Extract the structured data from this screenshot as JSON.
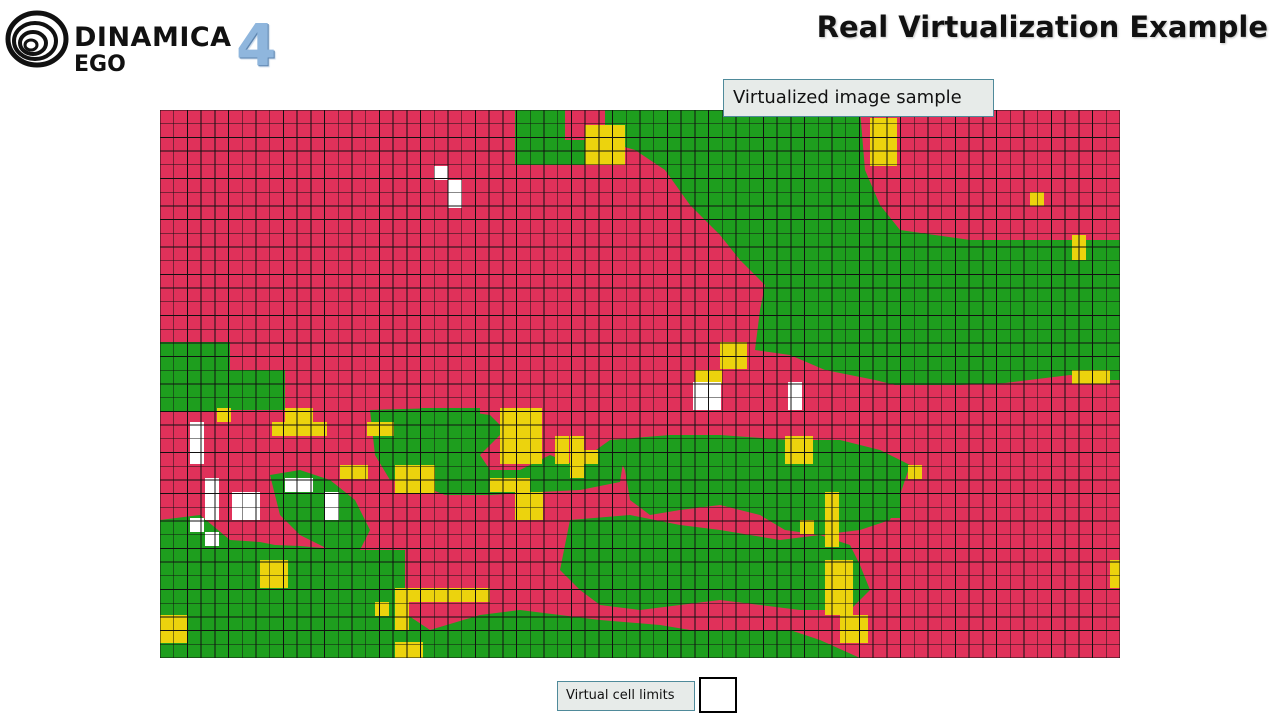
{
  "header": {
    "logo": {
      "name": "DINAMICA",
      "sub": "EGO",
      "version": "4"
    },
    "title": "Real Virtualization Example"
  },
  "grid": {
    "label": "Virtualized image sample",
    "colors": {
      "red": "#e0315a",
      "green": "#1e9e1e",
      "yellow": "#ecd30d",
      "white": "#ffffff",
      "line": "#111111"
    },
    "cell_columns": 70,
    "cell_rows": 40
  },
  "legend": {
    "label": "Virtual cell limits",
    "swatch_color": "#ffffff"
  }
}
